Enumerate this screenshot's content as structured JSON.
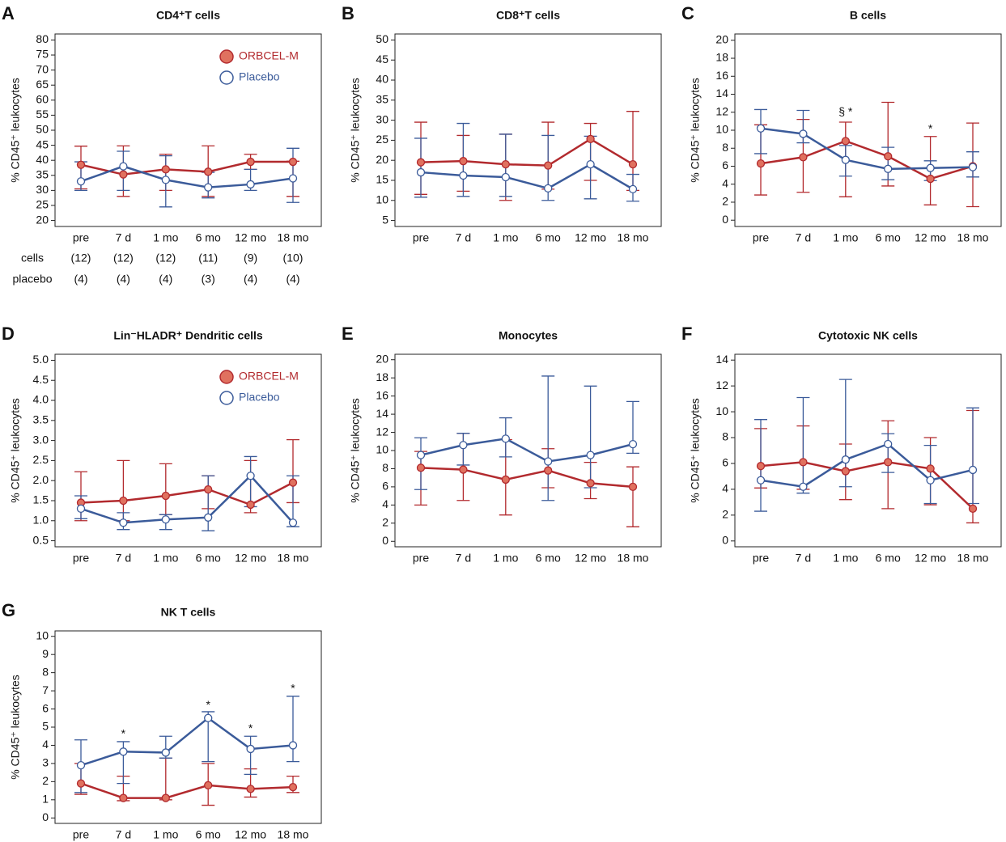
{
  "chart_data": [
    {
      "type": "line",
      "panel": "A",
      "title": "CD4⁺T cells",
      "y_label": "% CD45⁺ leukocytes",
      "categories": [
        "pre",
        "7 d",
        "1 mo",
        "6 mo",
        "12 mo",
        "18 mo"
      ],
      "ylim": [
        18,
        82
      ],
      "yticks": [
        20,
        25,
        30,
        35,
        40,
        45,
        50,
        55,
        60,
        65,
        70,
        75,
        80
      ],
      "legend": true,
      "series": [
        {
          "name": "ORBCEL-M",
          "color": "#b22a2e",
          "filled": true,
          "values": [
            38.5,
            35.3,
            37,
            36.2,
            39.5,
            39.5
          ],
          "upper": [
            44.7,
            44.8,
            42,
            44.8,
            42,
            39.7
          ],
          "lower": [
            30.5,
            28,
            30,
            28,
            37,
            28
          ]
        },
        {
          "name": "Placebo",
          "color": "#3b5b9a",
          "filled": false,
          "values": [
            33,
            38,
            33.5,
            31,
            32,
            34
          ],
          "upper": [
            39.5,
            43,
            41.5,
            36,
            37,
            44
          ],
          "lower": [
            30,
            30,
            24.5,
            27.5,
            30,
            26
          ]
        }
      ],
      "table": [
        {
          "label": "cells",
          "values": [
            "(12)",
            "(12)",
            "(12)",
            "(11)",
            "(9)",
            "(10)"
          ]
        },
        {
          "label": "placebo",
          "values": [
            "(4)",
            "(4)",
            "(4)",
            "(3)",
            "(4)",
            "(4)"
          ]
        }
      ]
    },
    {
      "type": "line",
      "panel": "B",
      "title": "CD8⁺T cells",
      "y_label": "% CD45⁺ leukocytes",
      "categories": [
        "pre",
        "7 d",
        "1 mo",
        "6 mo",
        "12 mo",
        "18 mo"
      ],
      "ylim": [
        3.5,
        51.5
      ],
      "yticks": [
        5,
        10,
        15,
        20,
        25,
        30,
        35,
        40,
        45,
        50
      ],
      "series": [
        {
          "name": "ORBCEL-M",
          "color": "#b22a2e",
          "filled": true,
          "values": [
            19.5,
            19.8,
            19,
            18.7,
            25.3,
            19
          ],
          "upper": [
            29.5,
            26.2,
            26.5,
            29.5,
            29.2,
            32.2
          ],
          "lower": [
            11.5,
            12.3,
            10,
            12.8,
            15,
            12.5
          ]
        },
        {
          "name": "Placebo",
          "color": "#3b5b9a",
          "filled": false,
          "values": [
            17,
            16.2,
            15.8,
            13,
            19,
            12.8
          ],
          "upper": [
            25.5,
            29.2,
            26.5,
            26.2,
            26,
            16.5
          ],
          "lower": [
            10.8,
            11,
            11,
            10,
            10.4,
            9.8
          ]
        }
      ]
    },
    {
      "type": "line",
      "panel": "C",
      "title": "B cells",
      "y_label": "% CD45⁺ leukocytes",
      "categories": [
        "pre",
        "7 d",
        "1 mo",
        "6 mo",
        "12 mo",
        "18 mo"
      ],
      "ylim": [
        -0.7,
        20.7
      ],
      "yticks": [
        0,
        2,
        4,
        6,
        8,
        10,
        12,
        14,
        16,
        18,
        20
      ],
      "series": [
        {
          "name": "ORBCEL-M",
          "color": "#b22a2e",
          "filled": true,
          "values": [
            6.3,
            7,
            8.8,
            7.1,
            4.6,
            6
          ],
          "upper": [
            10.6,
            11.2,
            10.9,
            13.1,
            9.3,
            10.8
          ],
          "lower": [
            2.8,
            3.1,
            2.6,
            3.8,
            1.7,
            1.5
          ]
        },
        {
          "name": "Placebo",
          "color": "#3b5b9a",
          "filled": false,
          "values": [
            10.2,
            9.6,
            6.7,
            5.7,
            5.8,
            5.9
          ],
          "upper": [
            12.3,
            12.2,
            8.3,
            8.1,
            6.6,
            7.6
          ],
          "lower": [
            7.4,
            8.6,
            4.9,
            4.5,
            4.4,
            4.8
          ]
        }
      ],
      "annotations": [
        {
          "text": "§ *",
          "category": "1 mo",
          "y": 12
        },
        {
          "text": "*",
          "category": "12 mo",
          "y": 10.1
        }
      ]
    },
    {
      "type": "line",
      "panel": "D",
      "title": "Lin⁻HLADR⁺ Dendritic cells",
      "y_label": "% CD45⁺ leukocytes",
      "categories": [
        "pre",
        "7 d",
        "1 mo",
        "6 mo",
        "12 mo",
        "18 mo"
      ],
      "ylim": [
        0.35,
        5.15
      ],
      "yticks": [
        {
          "value": 0.5,
          "label": "0.5"
        },
        {
          "value": 1,
          "label": "1.0"
        },
        {
          "value": 1.5,
          "label": "1.5"
        },
        {
          "value": 2,
          "label": "2.0"
        },
        {
          "value": 2.5,
          "label": "2.5"
        },
        {
          "value": 3,
          "label": "3.0"
        },
        {
          "value": 3.5,
          "label": "3.5"
        },
        {
          "value": 4,
          "label": "4.0"
        },
        {
          "value": 4.5,
          "label": "4.5"
        },
        {
          "value": 5,
          "label": "5.0"
        }
      ],
      "legend": true,
      "series": [
        {
          "name": "ORBCEL-M",
          "color": "#b22a2e",
          "filled": true,
          "values": [
            1.45,
            1.5,
            1.62,
            1.78,
            1.4,
            1.95
          ],
          "upper": [
            2.22,
            2.5,
            2.42,
            2.12,
            2.5,
            3.02
          ],
          "lower": [
            1,
            1,
            1.15,
            1.3,
            1.2,
            1.45
          ]
        },
        {
          "name": "Placebo",
          "color": "#3b5b9a",
          "filled": false,
          "values": [
            1.3,
            0.95,
            1.03,
            1.08,
            2.12,
            0.95
          ],
          "upper": [
            1.62,
            1.2,
            1.15,
            2.12,
            2.6,
            2.12
          ],
          "lower": [
            1.05,
            0.78,
            0.78,
            0.75,
            1.35,
            0.85
          ]
        }
      ]
    },
    {
      "type": "line",
      "panel": "E",
      "title": "Monocytes",
      "y_label": "% CD45⁺ leukocytes",
      "categories": [
        "pre",
        "7 d",
        "1 mo",
        "6 mo",
        "12 mo",
        "18 mo"
      ],
      "ylim": [
        -0.6,
        20.6
      ],
      "yticks": [
        0,
        2,
        4,
        6,
        8,
        10,
        12,
        14,
        16,
        18,
        20
      ],
      "series": [
        {
          "name": "ORBCEL-M",
          "color": "#b22a2e",
          "filled": true,
          "values": [
            8.1,
            7.9,
            6.8,
            7.8,
            6.4,
            6
          ],
          "upper": [
            9.9,
            11.9,
            11.2,
            10.2,
            8.7,
            8.2
          ],
          "lower": [
            4,
            4.5,
            2.9,
            5.9,
            4.7,
            1.6
          ]
        },
        {
          "name": "Placebo",
          "color": "#3b5b9a",
          "filled": false,
          "values": [
            9.5,
            10.6,
            11.3,
            8.8,
            9.5,
            10.7
          ],
          "upper": [
            11.4,
            11.9,
            13.6,
            18.2,
            17.1,
            15.4
          ],
          "lower": [
            5.7,
            8.4,
            9.3,
            4.5,
            5.9,
            9.7
          ]
        }
      ]
    },
    {
      "type": "line",
      "panel": "F",
      "title": "Cytotoxic NK cells",
      "y_label": "% CD45⁺ leukocytes",
      "categories": [
        "pre",
        "7 d",
        "1 mo",
        "6 mo",
        "12 mo",
        "18 mo"
      ],
      "ylim": [
        -0.45,
        14.45
      ],
      "yticks": [
        0,
        2,
        4,
        6,
        8,
        10,
        12,
        14
      ],
      "series": [
        {
          "name": "ORBCEL-M",
          "color": "#b22a2e",
          "filled": true,
          "values": [
            5.8,
            6.1,
            5.4,
            6.1,
            5.6,
            2.5
          ],
          "upper": [
            8.7,
            8.9,
            7.5,
            9.3,
            8,
            10.1
          ],
          "lower": [
            4.1,
            4,
            3.2,
            2.5,
            2.8,
            1.4
          ]
        },
        {
          "name": "Placebo",
          "color": "#3b5b9a",
          "filled": false,
          "values": [
            4.7,
            4.2,
            6.3,
            7.5,
            4.7,
            5.5
          ],
          "upper": [
            9.4,
            11.1,
            12.5,
            8.3,
            7.4,
            10.3
          ],
          "lower": [
            2.3,
            3.7,
            4.2,
            5.3,
            2.9,
            2.9
          ]
        }
      ]
    },
    {
      "type": "line",
      "panel": "G",
      "title": "NK T cells",
      "y_label": "% CD45⁺ leukocytes",
      "categories": [
        "pre",
        "7 d",
        "1 mo",
        "6 mo",
        "12 mo",
        "18 mo"
      ],
      "ylim": [
        -0.3,
        10.3
      ],
      "yticks": [
        0,
        1,
        2,
        3,
        4,
        5,
        6,
        7,
        8,
        9,
        10
      ],
      "series": [
        {
          "name": "ORBCEL-M",
          "color": "#b22a2e",
          "filled": true,
          "values": [
            1.9,
            1.1,
            1.1,
            1.8,
            1.6,
            1.7
          ],
          "upper": [
            3,
            2.3,
            3.3,
            3,
            2.7,
            2.3
          ],
          "lower": [
            1.3,
            0.95,
            1,
            0.7,
            1.15,
            1.4
          ]
        },
        {
          "name": "Placebo",
          "color": "#3b5b9a",
          "filled": false,
          "values": [
            2.9,
            3.65,
            3.6,
            5.5,
            3.8,
            4
          ],
          "upper": [
            4.3,
            4.2,
            4.5,
            5.85,
            4.5,
            6.7
          ],
          "lower": [
            1.4,
            1.9,
            3.3,
            3.1,
            2.4,
            3.1
          ]
        }
      ],
      "annotations": [
        {
          "text": "*",
          "category": "7 d",
          "y": 4.6
        },
        {
          "text": "*",
          "category": "6 mo",
          "y": 6.2
        },
        {
          "text": "*",
          "category": "12 mo",
          "y": 4.9
        },
        {
          "text": "*",
          "category": "18 mo",
          "y": 7.1
        }
      ]
    }
  ]
}
